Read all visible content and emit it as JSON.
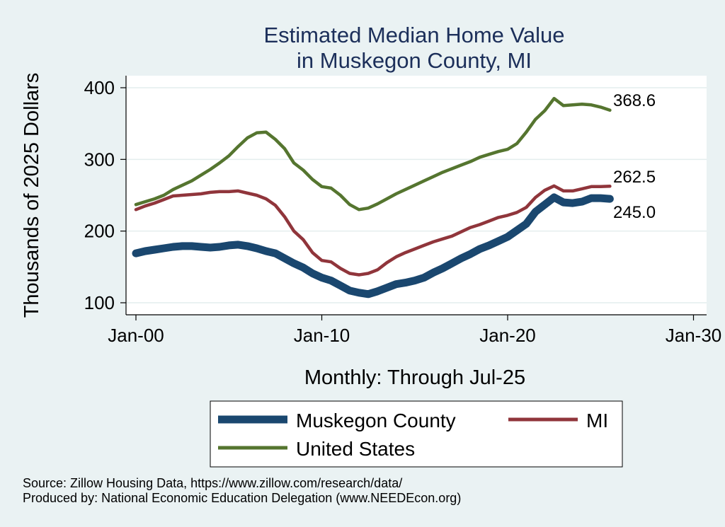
{
  "chart_data": {
    "type": "line",
    "title": [
      "Estimated Median Home Value",
      "in Muskegon County, MI"
    ],
    "xlabel": "Monthly: Through Jul-25",
    "ylabel": "Thousands of 2025 Dollars",
    "x_ticks": [
      "Jan-00",
      "Jan-10",
      "Jan-20",
      "Jan-30"
    ],
    "x_tick_years": [
      2000,
      2010,
      2020,
      2030
    ],
    "y_ticks": [
      100,
      200,
      300,
      400
    ],
    "xlim": [
      2000,
      2030
    ],
    "ylim": [
      95,
      415
    ],
    "grid": true,
    "legend_position": "bottom",
    "series": [
      {
        "name": "Muskegon County",
        "color": "#1a476f",
        "end_label": "245.0",
        "points": [
          [
            2000.0,
            169
          ],
          [
            2000.5,
            172
          ],
          [
            2001.0,
            174
          ],
          [
            2001.5,
            176
          ],
          [
            2002.0,
            178
          ],
          [
            2002.5,
            179
          ],
          [
            2003.0,
            179
          ],
          [
            2003.5,
            178
          ],
          [
            2004.0,
            177
          ],
          [
            2004.5,
            178
          ],
          [
            2005.0,
            180
          ],
          [
            2005.5,
            181
          ],
          [
            2006.0,
            179
          ],
          [
            2006.5,
            176
          ],
          [
            2007.0,
            172
          ],
          [
            2007.5,
            169
          ],
          [
            2008.0,
            162
          ],
          [
            2008.5,
            155
          ],
          [
            2009.0,
            149
          ],
          [
            2009.5,
            141
          ],
          [
            2010.0,
            135
          ],
          [
            2010.5,
            131
          ],
          [
            2011.0,
            124
          ],
          [
            2011.5,
            117
          ],
          [
            2012.0,
            114
          ],
          [
            2012.5,
            112
          ],
          [
            2013.0,
            116
          ],
          [
            2013.5,
            121
          ],
          [
            2014.0,
            126
          ],
          [
            2014.5,
            128
          ],
          [
            2015.0,
            131
          ],
          [
            2015.5,
            135
          ],
          [
            2016.0,
            142
          ],
          [
            2016.5,
            148
          ],
          [
            2017.0,
            155
          ],
          [
            2017.5,
            162
          ],
          [
            2018.0,
            168
          ],
          [
            2018.5,
            175
          ],
          [
            2019.0,
            180
          ],
          [
            2019.5,
            186
          ],
          [
            2020.0,
            192
          ],
          [
            2020.5,
            201
          ],
          [
            2021.0,
            210
          ],
          [
            2021.5,
            227
          ],
          [
            2022.0,
            237
          ],
          [
            2022.5,
            247
          ],
          [
            2023.0,
            240
          ],
          [
            2023.5,
            239
          ],
          [
            2024.0,
            241
          ],
          [
            2024.5,
            246
          ],
          [
            2025.0,
            246
          ],
          [
            2025.5,
            245.0
          ]
        ]
      },
      {
        "name": "MI",
        "color": "#90353b",
        "end_label": "262.5",
        "points": [
          [
            2000.0,
            230
          ],
          [
            2000.5,
            235
          ],
          [
            2001.0,
            239
          ],
          [
            2001.5,
            244
          ],
          [
            2002.0,
            249
          ],
          [
            2002.5,
            250
          ],
          [
            2003.0,
            251
          ],
          [
            2003.5,
            252
          ],
          [
            2004.0,
            254
          ],
          [
            2004.5,
            255
          ],
          [
            2005.0,
            255
          ],
          [
            2005.5,
            256
          ],
          [
            2006.0,
            253
          ],
          [
            2006.5,
            250
          ],
          [
            2007.0,
            245
          ],
          [
            2007.5,
            236
          ],
          [
            2008.0,
            220
          ],
          [
            2008.5,
            200
          ],
          [
            2009.0,
            188
          ],
          [
            2009.5,
            170
          ],
          [
            2010.0,
            159
          ],
          [
            2010.5,
            157
          ],
          [
            2011.0,
            148
          ],
          [
            2011.5,
            141
          ],
          [
            2012.0,
            139
          ],
          [
            2012.5,
            141
          ],
          [
            2013.0,
            146
          ],
          [
            2013.5,
            156
          ],
          [
            2014.0,
            164
          ],
          [
            2014.5,
            170
          ],
          [
            2015.0,
            175
          ],
          [
            2015.5,
            180
          ],
          [
            2016.0,
            185
          ],
          [
            2016.5,
            189
          ],
          [
            2017.0,
            193
          ],
          [
            2017.5,
            199
          ],
          [
            2018.0,
            205
          ],
          [
            2018.5,
            209
          ],
          [
            2019.0,
            214
          ],
          [
            2019.5,
            219
          ],
          [
            2020.0,
            222
          ],
          [
            2020.5,
            226
          ],
          [
            2021.0,
            233
          ],
          [
            2021.5,
            247
          ],
          [
            2022.0,
            257
          ],
          [
            2022.5,
            263
          ],
          [
            2023.0,
            256
          ],
          [
            2023.5,
            256
          ],
          [
            2024.0,
            259
          ],
          [
            2024.5,
            262
          ],
          [
            2025.0,
            262
          ],
          [
            2025.5,
            262.5
          ]
        ]
      },
      {
        "name": "United States",
        "color": "#55752f",
        "end_label": "368.6",
        "points": [
          [
            2000.0,
            237
          ],
          [
            2000.5,
            241
          ],
          [
            2001.0,
            245
          ],
          [
            2001.5,
            250
          ],
          [
            2002.0,
            258
          ],
          [
            2002.5,
            264
          ],
          [
            2003.0,
            270
          ],
          [
            2003.5,
            278
          ],
          [
            2004.0,
            286
          ],
          [
            2004.5,
            295
          ],
          [
            2005.0,
            305
          ],
          [
            2005.5,
            318
          ],
          [
            2006.0,
            330
          ],
          [
            2006.5,
            337
          ],
          [
            2007.0,
            338
          ],
          [
            2007.5,
            328
          ],
          [
            2008.0,
            315
          ],
          [
            2008.5,
            295
          ],
          [
            2009.0,
            285
          ],
          [
            2009.5,
            272
          ],
          [
            2010.0,
            262
          ],
          [
            2010.5,
            260
          ],
          [
            2011.0,
            250
          ],
          [
            2011.5,
            237
          ],
          [
            2012.0,
            230
          ],
          [
            2012.5,
            232
          ],
          [
            2013.0,
            238
          ],
          [
            2013.5,
            245
          ],
          [
            2014.0,
            252
          ],
          [
            2014.5,
            258
          ],
          [
            2015.0,
            264
          ],
          [
            2015.5,
            270
          ],
          [
            2016.0,
            276
          ],
          [
            2016.5,
            282
          ],
          [
            2017.0,
            287
          ],
          [
            2017.5,
            292
          ],
          [
            2018.0,
            297
          ],
          [
            2018.5,
            303
          ],
          [
            2019.0,
            307
          ],
          [
            2019.5,
            311
          ],
          [
            2020.0,
            314
          ],
          [
            2020.5,
            322
          ],
          [
            2021.0,
            338
          ],
          [
            2021.5,
            356
          ],
          [
            2022.0,
            368
          ],
          [
            2022.5,
            385
          ],
          [
            2023.0,
            375
          ],
          [
            2023.5,
            376
          ],
          [
            2024.0,
            377
          ],
          [
            2024.5,
            376
          ],
          [
            2025.0,
            373
          ],
          [
            2025.5,
            368.6
          ]
        ]
      }
    ]
  },
  "legend": {
    "items": [
      {
        "label": "Muskegon County",
        "color": "#1a476f"
      },
      {
        "label": "MI",
        "color": "#90353b"
      },
      {
        "label": "United States",
        "color": "#55752f"
      }
    ]
  },
  "footer": {
    "source": "Source: Zillow Housing Data, https://www.zillow.com/research/data/",
    "producer": "Produced by: National Economic Education Delegation (www.NEEDEcon.org)"
  }
}
